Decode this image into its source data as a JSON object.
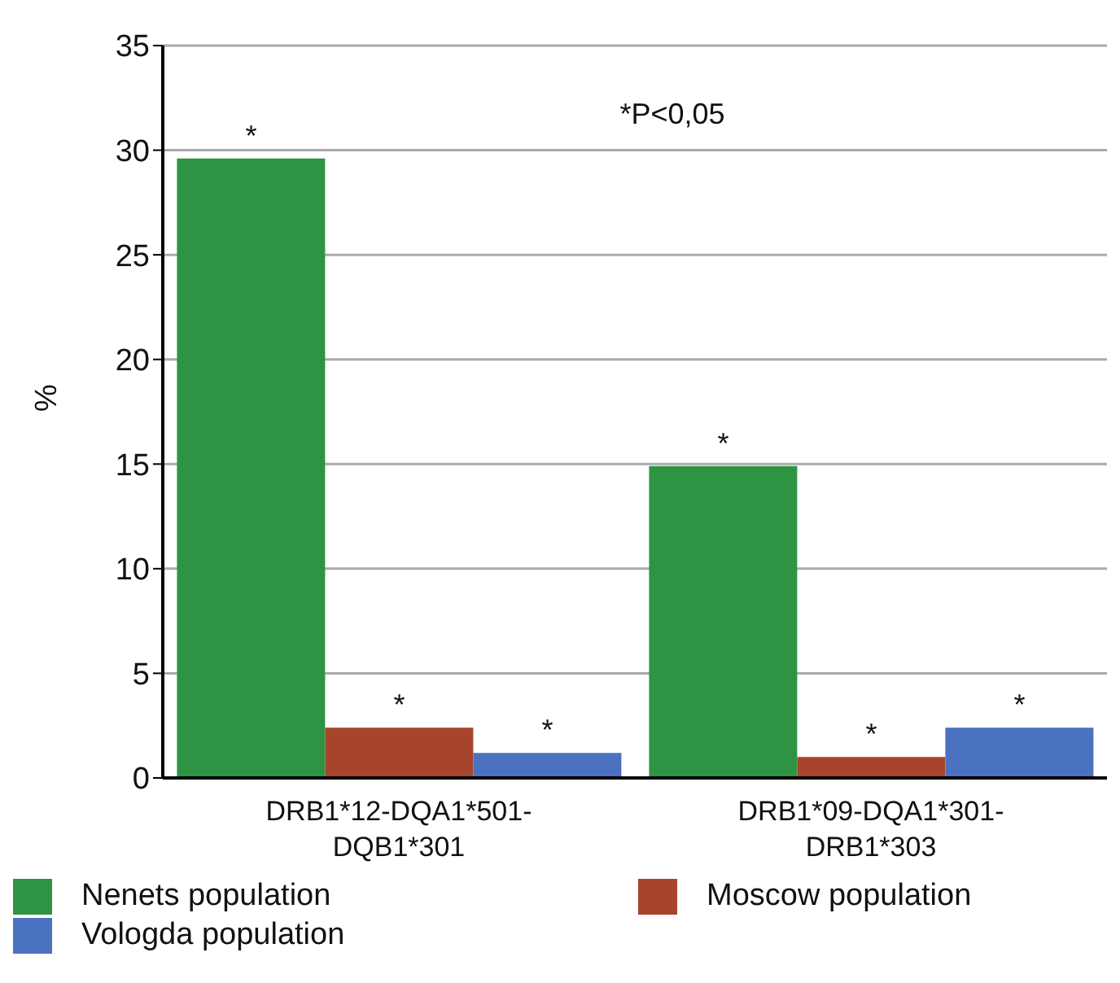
{
  "chart_data": {
    "type": "bar",
    "ylabel": "%",
    "categories": [
      "DRB1*12-DQA1*501-DQB1*301",
      "DRB1*09-DQA1*301-DRB1*303"
    ],
    "series": [
      {
        "name": "Nenets population",
        "color": "#2e9444",
        "values": [
          29.6,
          14.9
        ],
        "value_labels": [
          "*",
          "*"
        ]
      },
      {
        "name": "Moscow population",
        "color": "#a8442c",
        "values": [
          2.4,
          1.0
        ],
        "value_labels": [
          "*",
          "*"
        ]
      },
      {
        "name": "Vologda population",
        "color": "#4a72c0",
        "values": [
          1.2,
          2.4
        ],
        "value_labels": [
          "*",
          "*"
        ]
      }
    ],
    "ylim": [
      0,
      35
    ],
    "yticks": [
      0,
      5,
      10,
      15,
      20,
      25,
      30,
      35
    ],
    "grid": "y",
    "legend": "bottom",
    "annotations": [
      "*P<0,05"
    ]
  }
}
